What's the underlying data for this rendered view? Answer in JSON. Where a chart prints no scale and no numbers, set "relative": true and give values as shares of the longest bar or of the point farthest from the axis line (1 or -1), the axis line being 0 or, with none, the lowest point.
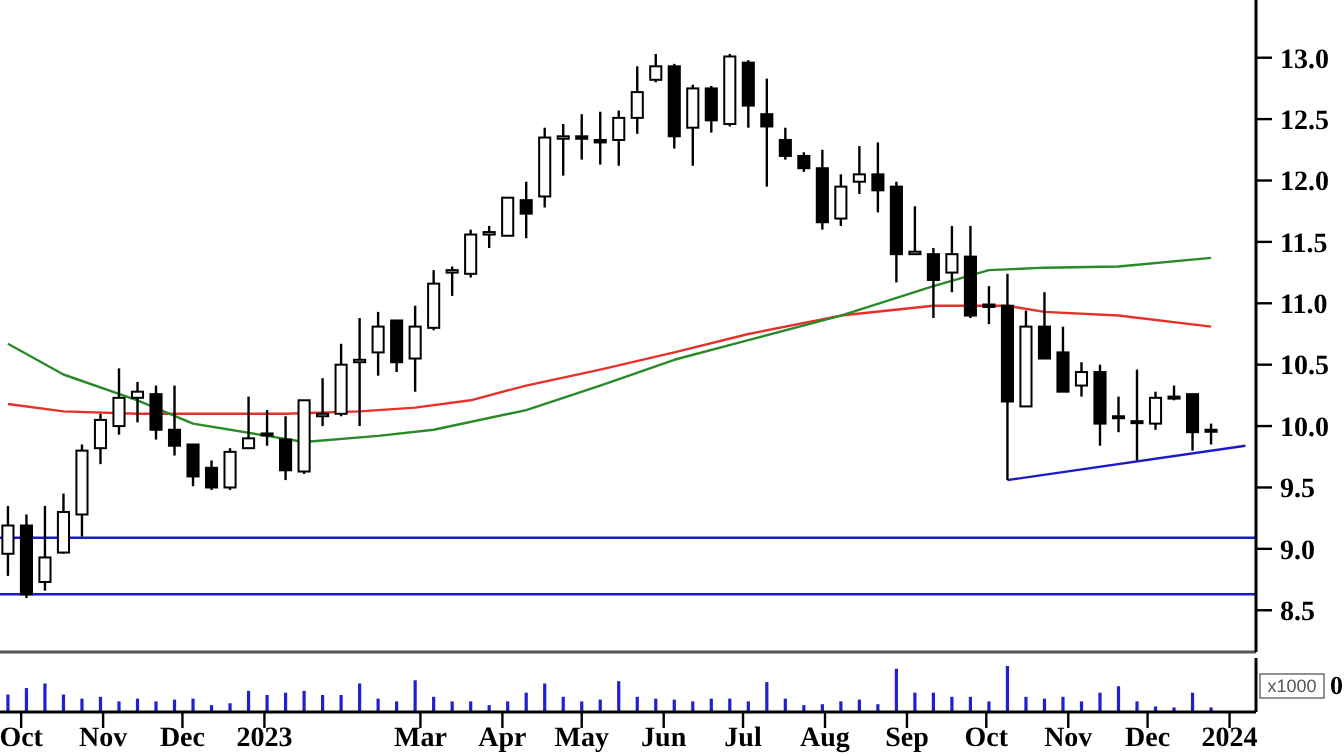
{
  "chart_data": [
    {
      "type": "candlestick",
      "tick_labels": "y",
      "xlim": [
        "2022-09-23",
        "2024-01-11"
      ],
      "ylim": [
        8.16,
        13.47
      ],
      "yticks": [
        {
          "value": 13,
          "label": "13.0"
        },
        {
          "value": 12.5,
          "label": "12.5"
        },
        {
          "value": 12,
          "label": "12.0"
        },
        {
          "value": 11.5,
          "label": "11.5"
        },
        {
          "value": 11,
          "label": "11.0"
        },
        {
          "value": 10.5,
          "label": "10.5"
        },
        {
          "value": 10,
          "label": "10.0"
        },
        {
          "value": 9.5,
          "label": "9.5"
        },
        {
          "value": 9,
          "label": "9.0"
        },
        {
          "value": 8.5,
          "label": "8.5"
        }
      ],
      "x": [
        "2022-09-26",
        "2022-10-03",
        "2022-10-10",
        "2022-10-17",
        "2022-10-24",
        "2022-10-31",
        "2022-11-07",
        "2022-11-14",
        "2022-11-21",
        "2022-11-28",
        "2022-12-05",
        "2022-12-12",
        "2022-12-19",
        "2022-12-26",
        "2023-01-02",
        "2023-01-09",
        "2023-01-16",
        "2023-01-23",
        "2023-01-30",
        "2023-02-06",
        "2023-02-13",
        "2023-02-20",
        "2023-02-27",
        "2023-03-06",
        "2023-03-13",
        "2023-03-20",
        "2023-03-27",
        "2023-04-03",
        "2023-04-10",
        "2023-04-17",
        "2023-04-24",
        "2023-05-01",
        "2023-05-08",
        "2023-05-15",
        "2023-05-22",
        "2023-05-29",
        "2023-06-05",
        "2023-06-12",
        "2023-06-19",
        "2023-06-26",
        "2023-07-03",
        "2023-07-10",
        "2023-07-17",
        "2023-07-24",
        "2023-07-31",
        "2023-08-07",
        "2023-08-14",
        "2023-08-21",
        "2023-08-28",
        "2023-09-04",
        "2023-09-11",
        "2023-09-18",
        "2023-09-25",
        "2023-10-02",
        "2023-10-09",
        "2023-10-16",
        "2023-10-23",
        "2023-10-30",
        "2023-11-06",
        "2023-11-13",
        "2023-11-20",
        "2023-11-27",
        "2023-12-04",
        "2023-12-11",
        "2023-12-18",
        "2023-12-25"
      ],
      "ohlc": [
        [
          8.96,
          9.35,
          8.78,
          9.19
        ],
        [
          9.19,
          9.28,
          8.6,
          8.63
        ],
        [
          8.73,
          9.35,
          8.66,
          8.93
        ],
        [
          8.97,
          9.45,
          8.96,
          9.3
        ],
        [
          9.28,
          9.85,
          9.1,
          9.8
        ],
        [
          9.82,
          10.1,
          9.69,
          10.05
        ],
        [
          10.0,
          10.47,
          9.93,
          10.23
        ],
        [
          10.23,
          10.36,
          10.03,
          10.28
        ],
        [
          10.26,
          10.33,
          9.89,
          9.97
        ],
        [
          9.97,
          10.33,
          9.76,
          9.84
        ],
        [
          9.85,
          9.85,
          9.51,
          9.59
        ],
        [
          9.66,
          9.72,
          9.48,
          9.5
        ],
        [
          9.5,
          9.82,
          9.48,
          9.79
        ],
        [
          9.82,
          10.24,
          9.82,
          9.9
        ],
        [
          9.94,
          10.13,
          9.84,
          9.93
        ],
        [
          9.89,
          10.08,
          9.56,
          9.64
        ],
        [
          9.63,
          10.21,
          9.61,
          10.21
        ],
        [
          10.08,
          10.39,
          10.0,
          10.1
        ],
        [
          10.1,
          10.67,
          10.08,
          10.5
        ],
        [
          10.52,
          10.88,
          10.0,
          10.54
        ],
        [
          10.6,
          10.93,
          10.41,
          10.81
        ],
        [
          10.86,
          10.86,
          10.44,
          10.52
        ],
        [
          10.55,
          10.98,
          10.28,
          10.81
        ],
        [
          10.8,
          11.27,
          10.78,
          11.16
        ],
        [
          11.25,
          11.3,
          11.06,
          11.27
        ],
        [
          11.24,
          11.6,
          11.21,
          11.56
        ],
        [
          11.56,
          11.63,
          11.45,
          11.58
        ],
        [
          11.55,
          11.86,
          11.55,
          11.86
        ],
        [
          11.84,
          11.99,
          11.53,
          11.73
        ],
        [
          11.87,
          12.43,
          11.78,
          12.35
        ],
        [
          12.34,
          12.46,
          12.04,
          12.36
        ],
        [
          12.36,
          12.54,
          12.17,
          12.34
        ],
        [
          12.33,
          12.56,
          12.13,
          12.31
        ],
        [
          12.33,
          12.57,
          12.12,
          12.51
        ],
        [
          12.51,
          12.93,
          12.38,
          12.72
        ],
        [
          12.82,
          13.03,
          12.8,
          12.93
        ],
        [
          12.93,
          12.95,
          12.26,
          12.36
        ],
        [
          12.43,
          12.78,
          12.12,
          12.75
        ],
        [
          12.75,
          12.77,
          12.39,
          12.49
        ],
        [
          12.46,
          13.03,
          12.44,
          13.01
        ],
        [
          12.96,
          12.98,
          12.43,
          12.61
        ],
        [
          12.54,
          12.83,
          11.95,
          12.44
        ],
        [
          12.33,
          12.43,
          12.17,
          12.2
        ],
        [
          12.2,
          12.23,
          12.07,
          12.1
        ],
        [
          12.1,
          12.25,
          11.6,
          11.66
        ],
        [
          11.69,
          12.05,
          11.63,
          11.95
        ],
        [
          11.99,
          12.28,
          11.89,
          12.05
        ],
        [
          12.05,
          12.31,
          11.74,
          11.92
        ],
        [
          11.95,
          11.99,
          11.17,
          11.4
        ],
        [
          11.4,
          11.79,
          11.4,
          11.42
        ],
        [
          11.4,
          11.45,
          10.88,
          11.19
        ],
        [
          11.25,
          11.63,
          11.09,
          11.4
        ],
        [
          11.38,
          11.63,
          10.88,
          10.9
        ],
        [
          10.99,
          11.14,
          10.83,
          10.97
        ],
        [
          10.98,
          11.24,
          9.56,
          10.2
        ],
        [
          10.16,
          10.94,
          10.16,
          10.81
        ],
        [
          10.81,
          11.09,
          10.55,
          10.55
        ],
        [
          10.6,
          10.81,
          10.28,
          10.28
        ],
        [
          10.33,
          10.52,
          10.24,
          10.44
        ],
        [
          10.44,
          10.5,
          9.84,
          10.02
        ],
        [
          10.08,
          10.24,
          9.95,
          10.08
        ],
        [
          10.04,
          10.46,
          9.72,
          10.03
        ],
        [
          10.02,
          10.28,
          9.97,
          10.23
        ],
        [
          10.23,
          10.33,
          10.21,
          10.24
        ],
        [
          10.26,
          10.26,
          9.8,
          9.95
        ],
        [
          9.97,
          10.02,
          9.85,
          9.96
        ]
      ],
      "series": [
        {
          "type": "line",
          "color": "#e8302a",
          "x": [
            "2022-09-26",
            "2022-10-17",
            "2022-11-14",
            "2022-12-12",
            "2023-01-09",
            "2023-02-06",
            "2023-02-27",
            "2023-03-20",
            "2023-04-10",
            "2023-05-08",
            "2023-06-05",
            "2023-07-03",
            "2023-08-07",
            "2023-09-11",
            "2023-10-09",
            "2023-10-23",
            "2023-11-20",
            "2023-12-25"
          ],
          "values": [
            10.18,
            10.12,
            10.1,
            10.1,
            10.1,
            10.12,
            10.15,
            10.21,
            10.33,
            10.46,
            10.6,
            10.75,
            10.9,
            10.98,
            10.98,
            10.93,
            10.9,
            10.81
          ]
        },
        {
          "type": "line",
          "color": "#2a8a2a",
          "x": [
            "2022-09-26",
            "2022-10-17",
            "2022-11-14",
            "2022-12-05",
            "2023-01-02",
            "2023-01-16",
            "2023-02-13",
            "2023-03-06",
            "2023-04-10",
            "2023-05-08",
            "2023-06-05",
            "2023-07-03",
            "2023-08-07",
            "2023-09-11",
            "2023-10-02",
            "2023-10-23",
            "2023-11-20",
            "2023-12-25"
          ],
          "values": [
            10.67,
            10.42,
            10.21,
            10.02,
            9.92,
            9.87,
            9.92,
            9.97,
            10.13,
            10.33,
            10.54,
            10.7,
            10.9,
            11.14,
            11.27,
            11.29,
            11.3,
            11.37
          ]
        },
        {
          "type": "line",
          "color": "#1a1acc",
          "x": [
            "2023-10-09",
            "2024-01-07"
          ],
          "values": [
            9.56,
            9.84
          ]
        }
      ],
      "ref_lines": [
        {
          "axis": "y",
          "value": 9.09,
          "color": "#1a1acc"
        },
        {
          "axis": "y",
          "value": 8.63,
          "color": "#1a1acc"
        }
      ]
    },
    {
      "type": "bar",
      "relative": true,
      "color": "#2020d0",
      "tick_labels": "x",
      "xlim": [
        "2022-09-23",
        "2024-01-11"
      ],
      "xticks": [
        {
          "value": "2022-10-01",
          "label": "Oct"
        },
        {
          "value": "2022-11-01",
          "label": "Nov"
        },
        {
          "value": "2022-12-01",
          "label": "Dec"
        },
        {
          "value": "2023-01-01",
          "label": "2023"
        },
        {
          "value": "2023-03-01",
          "label": "Mar"
        },
        {
          "value": "2023-04-01",
          "label": "Apr"
        },
        {
          "value": "2023-05-01",
          "label": "May"
        },
        {
          "value": "2023-06-01",
          "label": "Jun"
        },
        {
          "value": "2023-07-01",
          "label": "Jul"
        },
        {
          "value": "2023-08-01",
          "label": "Aug"
        },
        {
          "value": "2023-09-01",
          "label": "Sep"
        },
        {
          "value": "2023-10-01",
          "label": "Oct"
        },
        {
          "value": "2023-11-01",
          "label": "Nov"
        },
        {
          "value": "2023-12-01",
          "label": "Dec"
        },
        {
          "value": "2024-01-01",
          "label": "2024"
        }
      ],
      "x": [
        "2022-09-26",
        "2022-10-03",
        "2022-10-10",
        "2022-10-17",
        "2022-10-24",
        "2022-10-31",
        "2022-11-07",
        "2022-11-14",
        "2022-11-21",
        "2022-11-28",
        "2022-12-05",
        "2022-12-12",
        "2022-12-19",
        "2022-12-26",
        "2023-01-02",
        "2023-01-09",
        "2023-01-16",
        "2023-01-23",
        "2023-01-30",
        "2023-02-06",
        "2023-02-13",
        "2023-02-20",
        "2023-02-27",
        "2023-03-06",
        "2023-03-13",
        "2023-03-20",
        "2023-03-27",
        "2023-04-03",
        "2023-04-10",
        "2023-04-17",
        "2023-04-24",
        "2023-05-01",
        "2023-05-08",
        "2023-05-15",
        "2023-05-22",
        "2023-05-29",
        "2023-06-05",
        "2023-06-12",
        "2023-06-19",
        "2023-06-26",
        "2023-07-03",
        "2023-07-10",
        "2023-07-17",
        "2023-07-24",
        "2023-07-31",
        "2023-08-07",
        "2023-08-14",
        "2023-08-21",
        "2023-08-28",
        "2023-09-04",
        "2023-09-11",
        "2023-09-18",
        "2023-09-25",
        "2023-10-02",
        "2023-10-09",
        "2023-10-16",
        "2023-10-23",
        "2023-10-30",
        "2023-11-06",
        "2023-11-13",
        "2023-11-20",
        "2023-11-27",
        "2023-12-04",
        "2023-12-11",
        "2023-12-18",
        "2023-12-25"
      ],
      "values": [
        0.38,
        0.52,
        0.62,
        0.38,
        0.29,
        0.33,
        0.23,
        0.29,
        0.23,
        0.27,
        0.29,
        0.15,
        0.19,
        0.46,
        0.37,
        0.42,
        0.46,
        0.37,
        0.37,
        0.62,
        0.29,
        0.23,
        0.69,
        0.33,
        0.23,
        0.23,
        0.15,
        0.23,
        0.42,
        0.62,
        0.33,
        0.23,
        0.27,
        0.67,
        0.33,
        0.29,
        0.27,
        0.23,
        0.29,
        0.29,
        0.23,
        0.65,
        0.29,
        0.15,
        0.17,
        0.23,
        0.27,
        0.17,
        0.94,
        0.42,
        0.42,
        0.33,
        0.33,
        0.23,
        1,
        0.33,
        0.29,
        0.33,
        0.23,
        0.42,
        0.56,
        0.23,
        0.12,
        0.1,
        0.42,
        0.1
      ],
      "annotations": [
        "x1000",
        "0"
      ]
    }
  ]
}
